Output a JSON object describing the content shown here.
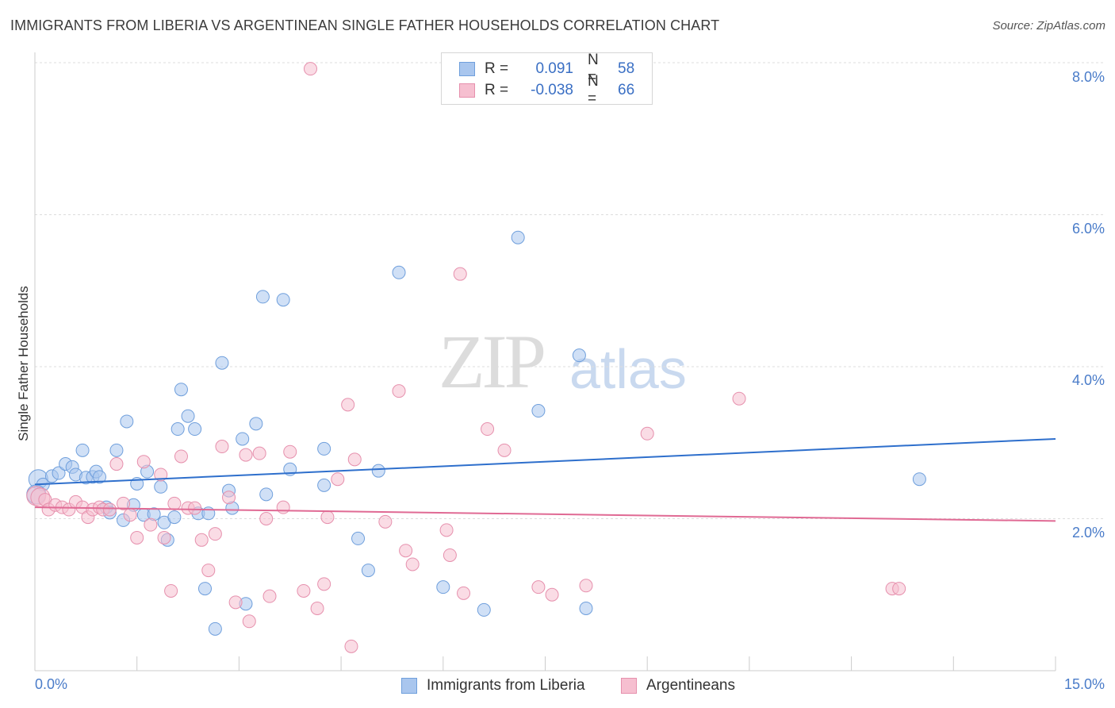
{
  "header": {
    "title": "IMMIGRANTS FROM LIBERIA VS ARGENTINEAN SINGLE FATHER HOUSEHOLDS CORRELATION CHART",
    "source": "Source: ZipAtlas.com"
  },
  "watermark": {
    "zip": "ZIP",
    "atlas": "atlas"
  },
  "stats_legend": {
    "rows": [
      {
        "r_label": "R =",
        "r_value": "0.091",
        "n_label": "N =",
        "n_value": "58"
      },
      {
        "r_label": "R =",
        "r_value": "-0.038",
        "n_label": "N =",
        "n_value": "66"
      }
    ]
  },
  "bottom_legend": {
    "series1": "Immigrants from Liberia",
    "series2": "Argentineans"
  },
  "axes": {
    "ylabel": "Single Father Households",
    "x_min_label": "0.0%",
    "x_max_label": "15.0%",
    "y_ticks": [
      "2.0%",
      "4.0%",
      "6.0%",
      "8.0%"
    ]
  },
  "colors": {
    "blue_fill": "#a9c6ee",
    "blue_stroke": "#6f9fdc",
    "blue_line": "#2e6fcc",
    "pink_fill": "#f6bfd0",
    "pink_stroke": "#e690ad",
    "pink_line": "#e06a94",
    "grid": "#dddddd"
  },
  "chart_data": {
    "type": "scatter",
    "xlim": [
      0,
      15
    ],
    "ylim": [
      0,
      8
    ],
    "x_unit": "%",
    "y_unit": "%",
    "grid": true,
    "series": [
      {
        "name": "Immigrants from Liberia",
        "color": "#a9c6ee",
        "trend": {
          "x": [
            0,
            15
          ],
          "y": [
            2.45,
            3.05
          ]
        },
        "points": [
          [
            0.05,
            2.52
          ],
          [
            0.12,
            2.45
          ],
          [
            0.25,
            2.56
          ],
          [
            0.35,
            2.6
          ],
          [
            0.45,
            2.72
          ],
          [
            0.55,
            2.68
          ],
          [
            0.6,
            2.58
          ],
          [
            0.7,
            2.9
          ],
          [
            0.75,
            2.54
          ],
          [
            0.85,
            2.55
          ],
          [
            0.9,
            2.62
          ],
          [
            0.95,
            2.55
          ],
          [
            1.05,
            2.15
          ],
          [
            1.1,
            2.08
          ],
          [
            1.2,
            2.9
          ],
          [
            1.3,
            1.98
          ],
          [
            1.35,
            3.28
          ],
          [
            1.45,
            2.18
          ],
          [
            1.5,
            2.46
          ],
          [
            1.6,
            2.05
          ],
          [
            1.65,
            2.62
          ],
          [
            1.75,
            2.06
          ],
          [
            1.85,
            2.42
          ],
          [
            1.9,
            1.95
          ],
          [
            1.95,
            1.72
          ],
          [
            2.05,
            2.02
          ],
          [
            2.1,
            3.18
          ],
          [
            2.15,
            3.7
          ],
          [
            2.25,
            3.35
          ],
          [
            2.35,
            3.18
          ],
          [
            2.4,
            2.07
          ],
          [
            2.5,
            1.08
          ],
          [
            2.55,
            2.07
          ],
          [
            2.65,
            0.55
          ],
          [
            2.75,
            4.05
          ],
          [
            2.85,
            2.37
          ],
          [
            2.9,
            2.14
          ],
          [
            3.05,
            3.05
          ],
          [
            3.1,
            0.88
          ],
          [
            3.25,
            3.25
          ],
          [
            3.4,
            2.32
          ],
          [
            3.35,
            4.92
          ],
          [
            3.65,
            4.88
          ],
          [
            3.75,
            2.65
          ],
          [
            4.25,
            2.92
          ],
          [
            4.25,
            2.44
          ],
          [
            4.75,
            1.74
          ],
          [
            4.9,
            1.32
          ],
          [
            5.05,
            2.63
          ],
          [
            5.35,
            5.24
          ],
          [
            6.0,
            1.1
          ],
          [
            6.6,
            0.8
          ],
          [
            7.1,
            5.7
          ],
          [
            7.4,
            3.42
          ],
          [
            8.0,
            4.15
          ],
          [
            8.1,
            0.82
          ],
          [
            13.0,
            2.52
          ],
          [
            0.02,
            2.32
          ]
        ]
      },
      {
        "name": "Argentineans",
        "color": "#f6bfd0",
        "trend": {
          "x": [
            0,
            15
          ],
          "y": [
            2.15,
            1.97
          ]
        },
        "points": [
          [
            0.02,
            2.3
          ],
          [
            0.08,
            2.28
          ],
          [
            0.15,
            2.25
          ],
          [
            0.2,
            2.12
          ],
          [
            0.3,
            2.18
          ],
          [
            0.4,
            2.15
          ],
          [
            0.5,
            2.12
          ],
          [
            0.6,
            2.22
          ],
          [
            0.7,
            2.15
          ],
          [
            0.78,
            2.02
          ],
          [
            0.85,
            2.12
          ],
          [
            0.95,
            2.15
          ],
          [
            1.0,
            2.12
          ],
          [
            1.1,
            2.12
          ],
          [
            1.2,
            2.72
          ],
          [
            1.3,
            2.2
          ],
          [
            1.4,
            2.05
          ],
          [
            1.5,
            1.75
          ],
          [
            1.6,
            2.75
          ],
          [
            1.7,
            1.92
          ],
          [
            1.85,
            2.58
          ],
          [
            1.9,
            1.75
          ],
          [
            2.0,
            1.05
          ],
          [
            2.05,
            2.2
          ],
          [
            2.15,
            2.82
          ],
          [
            2.25,
            2.14
          ],
          [
            2.35,
            2.14
          ],
          [
            2.45,
            1.72
          ],
          [
            2.55,
            1.32
          ],
          [
            2.65,
            1.8
          ],
          [
            2.75,
            2.95
          ],
          [
            2.85,
            2.28
          ],
          [
            2.95,
            0.9
          ],
          [
            3.1,
            2.84
          ],
          [
            3.15,
            0.65
          ],
          [
            3.3,
            2.86
          ],
          [
            3.4,
            2.0
          ],
          [
            3.45,
            0.98
          ],
          [
            3.65,
            2.15
          ],
          [
            3.75,
            2.88
          ],
          [
            3.95,
            1.05
          ],
          [
            4.15,
            0.82
          ],
          [
            4.25,
            1.14
          ],
          [
            4.3,
            2.02
          ],
          [
            4.45,
            2.52
          ],
          [
            4.6,
            3.5
          ],
          [
            4.65,
            0.32
          ],
          [
            4.7,
            2.78
          ],
          [
            5.15,
            1.96
          ],
          [
            5.35,
            3.68
          ],
          [
            5.45,
            1.58
          ],
          [
            5.55,
            1.4
          ],
          [
            4.05,
            7.92
          ],
          [
            6.05,
            1.85
          ],
          [
            6.1,
            1.52
          ],
          [
            6.25,
            5.22
          ],
          [
            6.3,
            1.02
          ],
          [
            6.65,
            3.18
          ],
          [
            6.9,
            2.9
          ],
          [
            7.4,
            1.1
          ],
          [
            7.6,
            1.0
          ],
          [
            8.1,
            1.12
          ],
          [
            9.0,
            3.12
          ],
          [
            10.35,
            3.58
          ],
          [
            12.6,
            1.08
          ],
          [
            12.7,
            1.08
          ]
        ]
      }
    ]
  }
}
